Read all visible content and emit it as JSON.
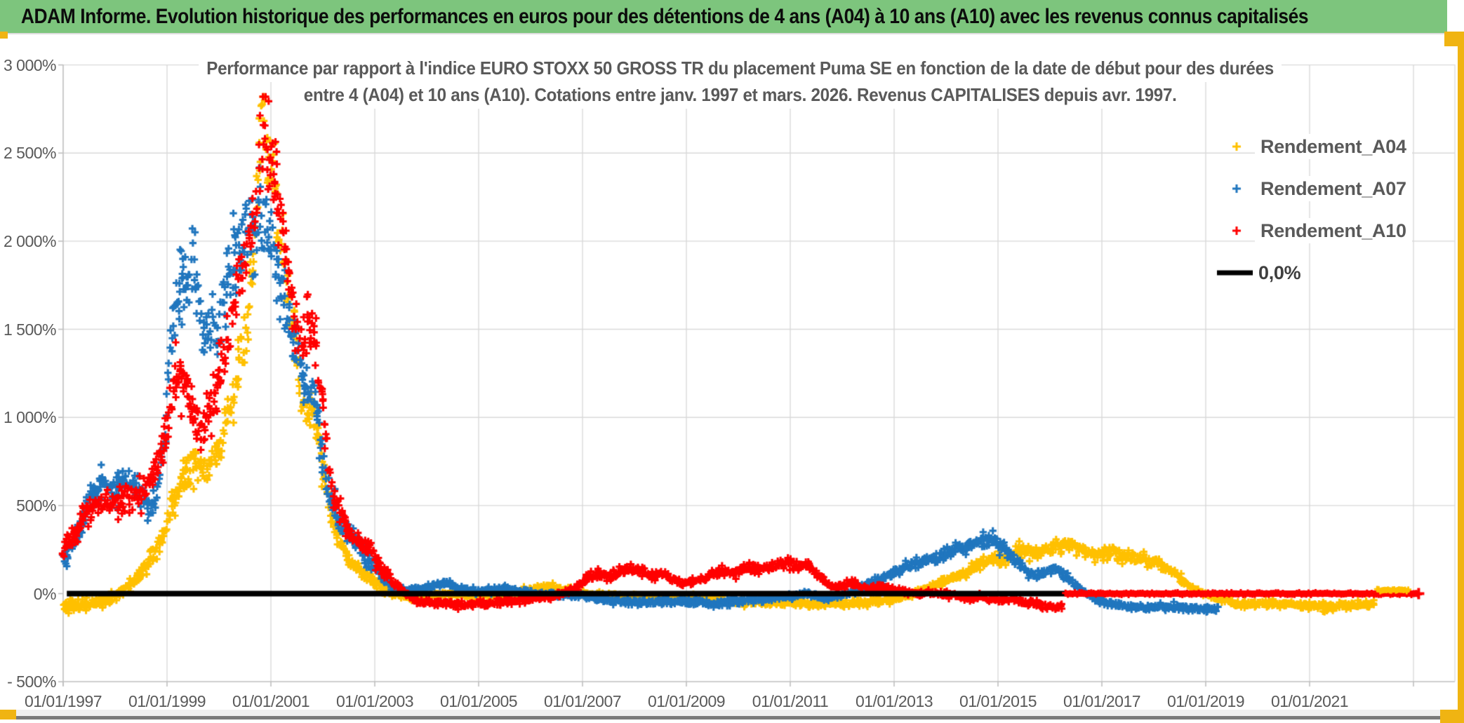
{
  "header": {
    "title": "ADAM Informe. Evolution historique des performances en euros pour des détentions de 4 ans (A04) à 10 ans (A10) avec les revenus connus capitalisés"
  },
  "frame_colors": {
    "header_green": "#7dc57d",
    "accent_gold": "#f0b412",
    "grid": "#d9d9d9",
    "axis": "#bfbfbf",
    "tick_text": "#595959"
  },
  "chart_data": {
    "type": "scatter",
    "title_lines": [
      "Performance par rapport à l'indice EURO STOXX 50 GROSS TR  du placement Puma SE en fonction de la date de début pour des durées",
      "entre 4 (A04) et 10 ans (A10). Cotations entre janv. 1997 et mars. 2026. Revenus CAPITALISES depuis avr. 1997."
    ],
    "y_axis": {
      "unit": "%",
      "min": -500,
      "max": 3000,
      "step": 500,
      "tick_labels": [
        "3 000%",
        "2 500%",
        "2 000%",
        "1 500%",
        "1 000%",
        "500%",
        "0%",
        "- 500%"
      ]
    },
    "x_axis": {
      "start_year": 1997,
      "end_year": 2023.8,
      "label_step_years": 2,
      "tick_labels": [
        "01/01/1997",
        "01/01/1999",
        "01/01/2001",
        "01/01/2003",
        "01/01/2005",
        "01/01/2007",
        "01/01/2009",
        "01/01/2011",
        "01/01/2013",
        "01/01/2015",
        "01/01/2017",
        "01/01/2019",
        "01/01/2021"
      ]
    },
    "legend": {
      "position": "top-right",
      "items": [
        "Rendement_A04",
        "Rendement_A07",
        "Rendement_A10",
        "0,0%"
      ]
    },
    "reference_line": {
      "label": "0,0%",
      "value": 0,
      "color": "#000000",
      "span_years": [
        1997.07,
        2016.3
      ]
    },
    "series": [
      {
        "name": "Rendement_A04",
        "color": "#ffc000",
        "marker": "plus",
        "zero_extension_years": [
          2022.3,
          2022.9
        ],
        "keyframes": [
          [
            1997.0,
            -70
          ],
          [
            1997.4,
            -66
          ],
          [
            1997.7,
            -55
          ],
          [
            1998.0,
            -20
          ],
          [
            1998.3,
            60
          ],
          [
            1998.6,
            160
          ],
          [
            1998.9,
            320
          ],
          [
            1999.1,
            500
          ],
          [
            1999.3,
            660
          ],
          [
            1999.5,
            740
          ],
          [
            1999.7,
            690
          ],
          [
            1999.9,
            770
          ],
          [
            2000.1,
            920
          ],
          [
            2000.3,
            1150
          ],
          [
            2000.5,
            1450
          ],
          [
            2000.65,
            1950
          ],
          [
            2000.78,
            2480
          ],
          [
            2000.85,
            2700
          ],
          [
            2000.95,
            2350
          ],
          [
            2001.05,
            2480
          ],
          [
            2001.15,
            2050
          ],
          [
            2001.3,
            1700
          ],
          [
            2001.45,
            1580
          ],
          [
            2001.55,
            1150
          ],
          [
            2001.7,
            1000
          ],
          [
            2001.8,
            1080
          ],
          [
            2001.95,
            820
          ],
          [
            2002.1,
            520
          ],
          [
            2002.3,
            310
          ],
          [
            2002.5,
            200
          ],
          [
            2002.8,
            110
          ],
          [
            2003.1,
            40
          ],
          [
            2003.4,
            -5
          ],
          [
            2003.7,
            -20
          ],
          [
            2004.1,
            -8
          ],
          [
            2004.5,
            2
          ],
          [
            2005.0,
            -15
          ],
          [
            2005.5,
            -8
          ],
          [
            2006.0,
            22
          ],
          [
            2006.35,
            38
          ],
          [
            2006.7,
            18
          ],
          [
            2007.1,
            -2
          ],
          [
            2007.6,
            -12
          ],
          [
            2008.1,
            -18
          ],
          [
            2008.6,
            -25
          ],
          [
            2009.1,
            -32
          ],
          [
            2009.6,
            -42
          ],
          [
            2010.1,
            -48
          ],
          [
            2010.6,
            -52
          ],
          [
            2011.1,
            -56
          ],
          [
            2011.6,
            -60
          ],
          [
            2012.1,
            -55
          ],
          [
            2012.6,
            -48
          ],
          [
            2013.0,
            -28
          ],
          [
            2013.4,
            2
          ],
          [
            2013.8,
            55
          ],
          [
            2014.2,
            105
          ],
          [
            2014.6,
            155
          ],
          [
            2014.9,
            205
          ],
          [
            2015.1,
            185
          ],
          [
            2015.4,
            248
          ],
          [
            2015.7,
            228
          ],
          [
            2016.0,
            258
          ],
          [
            2016.3,
            282
          ],
          [
            2016.6,
            248
          ],
          [
            2016.9,
            222
          ],
          [
            2017.2,
            235
          ],
          [
            2017.5,
            212
          ],
          [
            2017.8,
            192
          ],
          [
            2018.1,
            172
          ],
          [
            2018.4,
            118
          ],
          [
            2018.7,
            42
          ],
          [
            2018.95,
            -5
          ],
          [
            2019.2,
            -28
          ],
          [
            2019.5,
            -52
          ],
          [
            2019.9,
            -62
          ],
          [
            2020.4,
            -56
          ],
          [
            2020.9,
            -66
          ],
          [
            2021.4,
            -70
          ],
          [
            2021.9,
            -64
          ],
          [
            2022.25,
            -58
          ]
        ]
      },
      {
        "name": "Rendement_A07",
        "color": "#2076be",
        "marker": "plus",
        "zero_extension_years": null,
        "keyframes": [
          [
            1997.0,
            195
          ],
          [
            1997.1,
            235
          ],
          [
            1997.25,
            330
          ],
          [
            1997.4,
            450
          ],
          [
            1997.55,
            540
          ],
          [
            1997.7,
            605
          ],
          [
            1997.85,
            620
          ],
          [
            1998.0,
            598
          ],
          [
            1998.2,
            648
          ],
          [
            1998.35,
            615
          ],
          [
            1998.5,
            558
          ],
          [
            1998.65,
            478
          ],
          [
            1998.8,
            545
          ],
          [
            1998.95,
            880
          ],
          [
            1999.05,
            1280
          ],
          [
            1999.15,
            1590
          ],
          [
            1999.25,
            1740
          ],
          [
            1999.35,
            1690
          ],
          [
            1999.45,
            1790
          ],
          [
            1999.55,
            1840
          ],
          [
            1999.65,
            1510
          ],
          [
            1999.78,
            1450
          ],
          [
            1999.88,
            1590
          ],
          [
            1999.98,
            1460
          ],
          [
            2000.12,
            1690
          ],
          [
            2000.28,
            1890
          ],
          [
            2000.45,
            2000
          ],
          [
            2000.6,
            2090
          ],
          [
            2000.75,
            2140
          ],
          [
            2000.88,
            2040
          ],
          [
            2001.0,
            2090
          ],
          [
            2001.12,
            1880
          ],
          [
            2001.25,
            1660
          ],
          [
            2001.38,
            1500
          ],
          [
            2001.5,
            1440
          ],
          [
            2001.62,
            1240
          ],
          [
            2001.72,
            1100
          ],
          [
            2001.82,
            1140
          ],
          [
            2001.95,
            880
          ],
          [
            2002.1,
            590
          ],
          [
            2002.3,
            420
          ],
          [
            2002.5,
            345
          ],
          [
            2002.7,
            275
          ],
          [
            2002.9,
            195
          ],
          [
            2003.1,
            95
          ],
          [
            2003.35,
            42
          ],
          [
            2003.6,
            18
          ],
          [
            2003.9,
            28
          ],
          [
            2004.2,
            48
          ],
          [
            2004.45,
            54
          ],
          [
            2004.7,
            28
          ],
          [
            2004.95,
            8
          ],
          [
            2005.25,
            24
          ],
          [
            2005.55,
            30
          ],
          [
            2005.85,
            10
          ],
          [
            2006.2,
            -2
          ],
          [
            2006.6,
            -8
          ],
          [
            2007.0,
            -14
          ],
          [
            2007.5,
            -38
          ],
          [
            2008.0,
            -50
          ],
          [
            2008.5,
            -44
          ],
          [
            2009.0,
            -52
          ],
          [
            2009.5,
            -56
          ],
          [
            2010.0,
            -42
          ],
          [
            2010.5,
            -30
          ],
          [
            2011.0,
            -18
          ],
          [
            2011.3,
            -2
          ],
          [
            2011.6,
            -22
          ],
          [
            2012.0,
            -12
          ],
          [
            2012.4,
            38
          ],
          [
            2012.8,
            92
          ],
          [
            2013.2,
            148
          ],
          [
            2013.5,
            172
          ],
          [
            2013.8,
            198
          ],
          [
            2014.1,
            238
          ],
          [
            2014.4,
            268
          ],
          [
            2014.7,
            292
          ],
          [
            2014.9,
            308
          ],
          [
            2015.1,
            258
          ],
          [
            2015.3,
            198
          ],
          [
            2015.5,
            148
          ],
          [
            2015.7,
            102
          ],
          [
            2015.9,
            122
          ],
          [
            2016.1,
            138
          ],
          [
            2016.35,
            88
          ],
          [
            2016.55,
            38
          ],
          [
            2016.75,
            -6
          ],
          [
            2016.95,
            -42
          ],
          [
            2017.25,
            -60
          ],
          [
            2017.55,
            -72
          ],
          [
            2017.85,
            -80
          ],
          [
            2018.15,
            -70
          ],
          [
            2018.5,
            -80
          ],
          [
            2018.9,
            -86
          ],
          [
            2019.25,
            -80
          ]
        ]
      },
      {
        "name": "Rendement_A10",
        "color": "#ff0000",
        "marker": "plus",
        "zero_extension_years": [
          2016.3,
          2023.1
        ],
        "keyframes": [
          [
            1997.0,
            245
          ],
          [
            1997.15,
            300
          ],
          [
            1997.3,
            375
          ],
          [
            1997.5,
            475
          ],
          [
            1997.7,
            518
          ],
          [
            1997.9,
            498
          ],
          [
            1998.1,
            528
          ],
          [
            1998.3,
            558
          ],
          [
            1998.5,
            578
          ],
          [
            1998.7,
            645
          ],
          [
            1998.85,
            790
          ],
          [
            1999.0,
            940
          ],
          [
            1999.1,
            1090
          ],
          [
            1999.2,
            1240
          ],
          [
            1999.32,
            1190
          ],
          [
            1999.45,
            1090
          ],
          [
            1999.6,
            945
          ],
          [
            1999.75,
            995
          ],
          [
            1999.9,
            1095
          ],
          [
            2000.05,
            1295
          ],
          [
            2000.2,
            1495
          ],
          [
            2000.35,
            1695
          ],
          [
            2000.5,
            1895
          ],
          [
            2000.62,
            2090
          ],
          [
            2000.72,
            2290
          ],
          [
            2000.82,
            2540
          ],
          [
            2000.9,
            2610
          ],
          [
            2001.0,
            2440
          ],
          [
            2001.1,
            2290
          ],
          [
            2001.2,
            2090
          ],
          [
            2001.3,
            1890
          ],
          [
            2001.4,
            1690
          ],
          [
            2001.5,
            1490
          ],
          [
            2001.6,
            1390
          ],
          [
            2001.7,
            1540
          ],
          [
            2001.8,
            1490
          ],
          [
            2001.9,
            1290
          ],
          [
            2002.0,
            1090
          ],
          [
            2002.1,
            790
          ],
          [
            2002.2,
            590
          ],
          [
            2002.35,
            445
          ],
          [
            2002.5,
            345
          ],
          [
            2002.65,
            295
          ],
          [
            2002.8,
            275
          ],
          [
            2002.95,
            240
          ],
          [
            2003.15,
            140
          ],
          [
            2003.35,
            72
          ],
          [
            2003.55,
            15
          ],
          [
            2003.75,
            -32
          ],
          [
            2003.95,
            -52
          ],
          [
            2004.25,
            -56
          ],
          [
            2004.55,
            -62
          ],
          [
            2004.85,
            -54
          ],
          [
            2005.15,
            -60
          ],
          [
            2005.45,
            -50
          ],
          [
            2005.75,
            -44
          ],
          [
            2006.05,
            -28
          ],
          [
            2006.35,
            -18
          ],
          [
            2006.65,
            2
          ],
          [
            2006.9,
            42
          ],
          [
            2007.1,
            88
          ],
          [
            2007.3,
            108
          ],
          [
            2007.5,
            98
          ],
          [
            2007.7,
            118
          ],
          [
            2007.9,
            138
          ],
          [
            2008.1,
            128
          ],
          [
            2008.3,
            108
          ],
          [
            2008.5,
            118
          ],
          [
            2008.7,
            88
          ],
          [
            2008.9,
            58
          ],
          [
            2009.1,
            68
          ],
          [
            2009.3,
            88
          ],
          [
            2009.5,
            108
          ],
          [
            2009.7,
            128
          ],
          [
            2009.9,
            118
          ],
          [
            2010.1,
            138
          ],
          [
            2010.3,
            148
          ],
          [
            2010.5,
            138
          ],
          [
            2010.7,
            158
          ],
          [
            2010.9,
            168
          ],
          [
            2011.1,
            158
          ],
          [
            2011.3,
            168
          ],
          [
            2011.5,
            118
          ],
          [
            2011.7,
            58
          ],
          [
            2011.9,
            38
          ],
          [
            2012.1,
            58
          ],
          [
            2012.3,
            48
          ],
          [
            2012.5,
            28
          ],
          [
            2012.7,
            38
          ],
          [
            2012.9,
            28
          ],
          [
            2013.1,
            18
          ],
          [
            2013.3,
            8
          ],
          [
            2013.5,
            -2
          ],
          [
            2013.7,
            8
          ],
          [
            2013.9,
            -2
          ],
          [
            2014.1,
            -12
          ],
          [
            2014.3,
            -22
          ],
          [
            2014.5,
            -30
          ],
          [
            2014.7,
            -22
          ],
          [
            2014.9,
            -32
          ],
          [
            2015.1,
            -40
          ],
          [
            2015.3,
            -32
          ],
          [
            2015.5,
            -48
          ],
          [
            2015.7,
            -58
          ],
          [
            2015.9,
            -68
          ],
          [
            2016.1,
            -78
          ],
          [
            2016.25,
            -80
          ]
        ]
      }
    ]
  }
}
